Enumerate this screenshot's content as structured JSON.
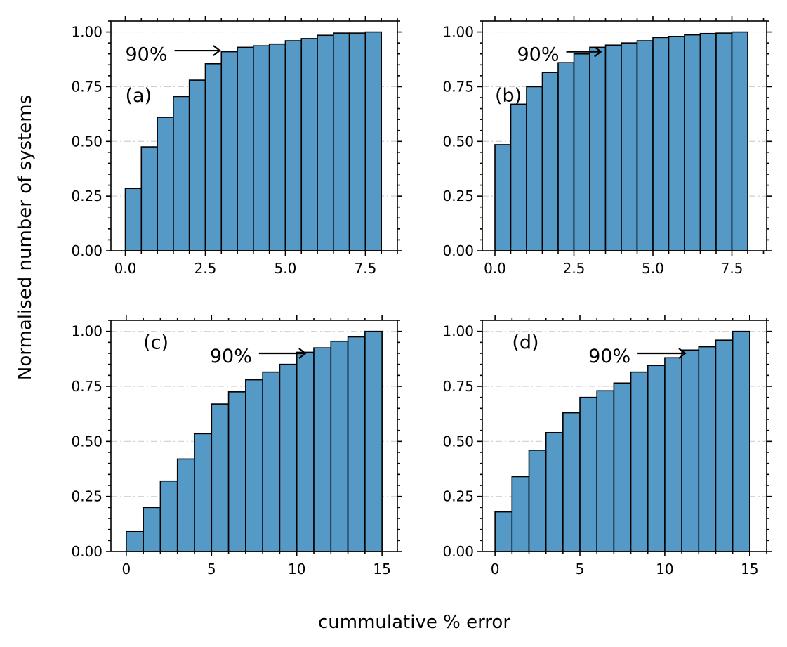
{
  "figure": {
    "ylabel": "Normalised number of systems",
    "xlabel": "cummulative % error",
    "bar_color": "#5599c7",
    "edge_color": "#000000",
    "grid": "y-major, dash-dot, light gray"
  },
  "chart_data": [
    {
      "type": "bar",
      "panel_label": "(a)",
      "annotation": {
        "text": "90%",
        "x": 2.95,
        "y": 0.915
      },
      "bin_edges": [
        0.0,
        0.5,
        1.0,
        1.5,
        2.0,
        2.5,
        3.0,
        3.5,
        4.0,
        4.5,
        5.0,
        5.5,
        6.0,
        6.5,
        7.0,
        7.5,
        8.0
      ],
      "values": [
        0.285,
        0.475,
        0.61,
        0.705,
        0.78,
        0.855,
        0.91,
        0.93,
        0.937,
        0.945,
        0.96,
        0.97,
        0.985,
        0.995,
        0.995,
        1.0
      ],
      "xlim": [
        -0.45,
        8.5
      ],
      "ylim": [
        0.0,
        1.05
      ],
      "xticks": [
        "0.0",
        "2.5",
        "5.0",
        "7.5"
      ],
      "xtick_values": [
        0.0,
        2.5,
        5.0,
        7.5
      ],
      "yticks": [
        "0.00",
        "0.25",
        "0.50",
        "0.75",
        "1.00"
      ],
      "ytick_values": [
        0,
        0.25,
        0.5,
        0.75,
        1.0
      ]
    },
    {
      "type": "bar",
      "panel_label": "(b)",
      "annotation": {
        "text": "90%",
        "x": 3.35,
        "y": 0.91
      },
      "bin_edges": [
        0.0,
        0.5,
        1.0,
        1.5,
        2.0,
        2.5,
        3.0,
        3.5,
        4.0,
        4.5,
        5.0,
        5.5,
        6.0,
        6.5,
        7.0,
        7.5,
        8.0
      ],
      "values": [
        0.485,
        0.67,
        0.75,
        0.815,
        0.86,
        0.9,
        0.93,
        0.94,
        0.95,
        0.96,
        0.975,
        0.98,
        0.987,
        0.993,
        0.995,
        1.0
      ],
      "xlim": [
        -0.4,
        8.6
      ],
      "ylim": [
        0.0,
        1.05
      ],
      "xticks": [
        "0.0",
        "2.5",
        "5.0",
        "7.5"
      ],
      "xtick_values": [
        0.0,
        2.5,
        5.0,
        7.5
      ],
      "yticks": [
        "0.00",
        "0.25",
        "0.50",
        "0.75",
        "1.00"
      ],
      "ytick_values": [
        0,
        0.25,
        0.5,
        0.75,
        1.0
      ]
    },
    {
      "type": "bar",
      "panel_label": "(c)",
      "annotation": {
        "text": "90%",
        "x": 10.5,
        "y": 0.9
      },
      "bin_edges": [
        0,
        1,
        2,
        3,
        4,
        5,
        6,
        7,
        8,
        9,
        10,
        11,
        12,
        13,
        14,
        15
      ],
      "values": [
        0.09,
        0.2,
        0.32,
        0.42,
        0.535,
        0.67,
        0.725,
        0.78,
        0.815,
        0.85,
        0.905,
        0.925,
        0.955,
        0.975,
        1.0
      ],
      "xlim": [
        -0.9,
        15.9
      ],
      "ylim": [
        0.0,
        1.05
      ],
      "xticks": [
        "0",
        "5",
        "10",
        "15"
      ],
      "xtick_values": [
        0,
        5,
        10,
        15
      ],
      "yticks": [
        "0.00",
        "0.25",
        "0.50",
        "0.75",
        "1.00"
      ],
      "ytick_values": [
        0,
        0.25,
        0.5,
        0.75,
        1.0
      ]
    },
    {
      "type": "bar",
      "panel_label": "(d)",
      "annotation": {
        "text": "90%",
        "x": 11.2,
        "y": 0.9
      },
      "bin_edges": [
        0,
        1,
        2,
        3,
        4,
        5,
        6,
        7,
        8,
        9,
        10,
        11,
        12,
        13,
        14,
        15
      ],
      "values": [
        0.18,
        0.34,
        0.46,
        0.54,
        0.63,
        0.7,
        0.73,
        0.765,
        0.815,
        0.845,
        0.88,
        0.915,
        0.93,
        0.96,
        1.0
      ],
      "xlim": [
        -0.75,
        16.0
      ],
      "ylim": [
        0.0,
        1.05
      ],
      "xticks": [
        "0",
        "5",
        "10",
        "15"
      ],
      "xtick_values": [
        0,
        5,
        10,
        15
      ],
      "yticks": [
        "0.00",
        "0.25",
        "0.50",
        "0.75",
        "1.00"
      ],
      "ytick_values": [
        0,
        0.25,
        0.5,
        0.75,
        1.0
      ]
    }
  ]
}
